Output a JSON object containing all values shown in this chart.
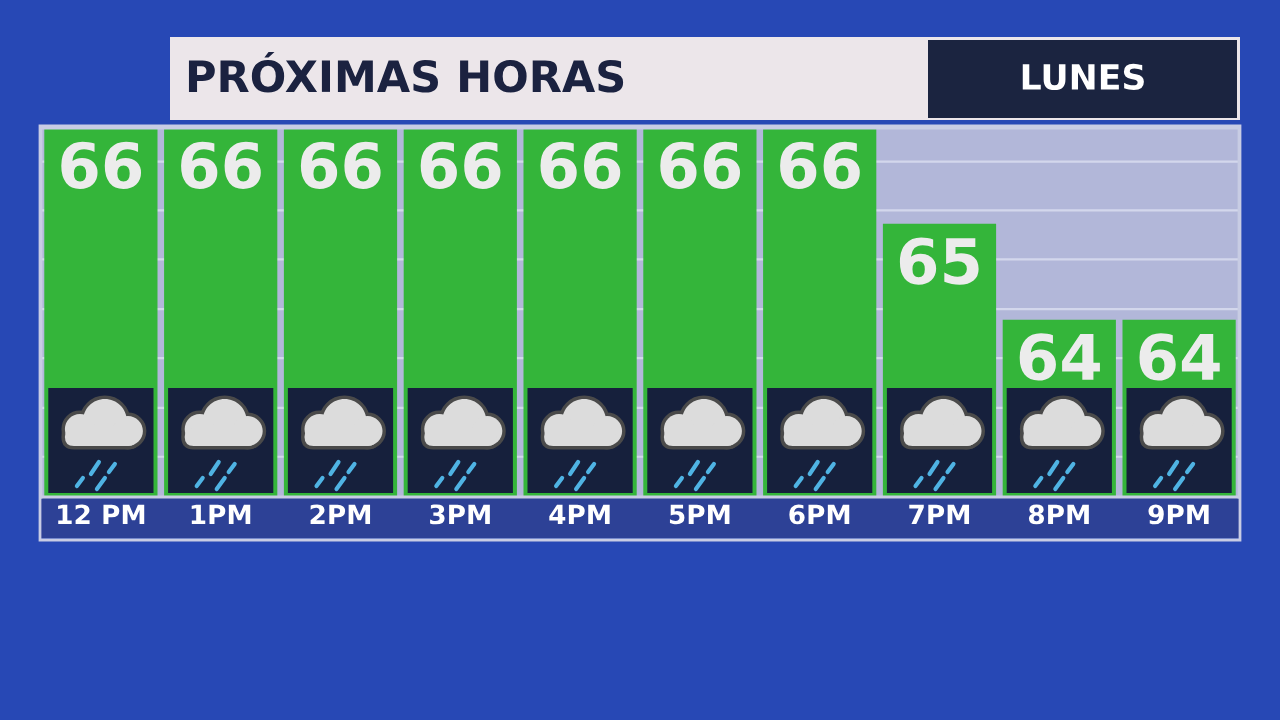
{
  "chart_data": {
    "type": "bar",
    "title": "PRÓXIMAS HORAS",
    "subtitle": "LUNES",
    "categories": [
      "12 PM",
      "1PM",
      "2PM",
      "3PM",
      "4PM",
      "5PM",
      "6PM",
      "7PM",
      "8PM",
      "9PM"
    ],
    "values": [
      66,
      66,
      66,
      66,
      66,
      66,
      66,
      65,
      64,
      64
    ],
    "color": "#34b53a",
    "data_labels": true,
    "ylim": [
      62.15,
      66
    ],
    "yticks": [
      {
        "value": 62.57,
        "label": null
      },
      {
        "value": 63.08,
        "label": null
      },
      {
        "value": 63.6,
        "label": null
      },
      {
        "value": 64.11,
        "label": null
      },
      {
        "value": 64.63,
        "label": null
      },
      {
        "value": 65.14,
        "label": null
      },
      {
        "value": 65.65,
        "label": null
      }
    ],
    "grid": "y",
    "tick_labels": "x"
  }
}
